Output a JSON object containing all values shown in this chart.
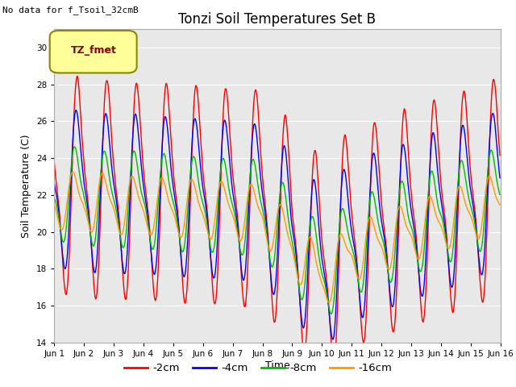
{
  "title": "Tonzi Soil Temperatures Set B",
  "xlabel": "Time",
  "ylabel": "Soil Temperature (C)",
  "note": "No data for f_Tsoil_32cmB",
  "legend_label": "TZ_fmet",
  "ylim": [
    14,
    31
  ],
  "yticks": [
    14,
    16,
    18,
    20,
    22,
    24,
    26,
    28,
    30
  ],
  "line_colors": [
    "#ff0000",
    "#0000ff",
    "#00bb00",
    "#ff9900"
  ],
  "line_labels": [
    "-2cm",
    "-4cm",
    "-8cm",
    "-16cm"
  ],
  "bg_color": "#e8e8e8",
  "n_days": 15,
  "ppd": 48
}
